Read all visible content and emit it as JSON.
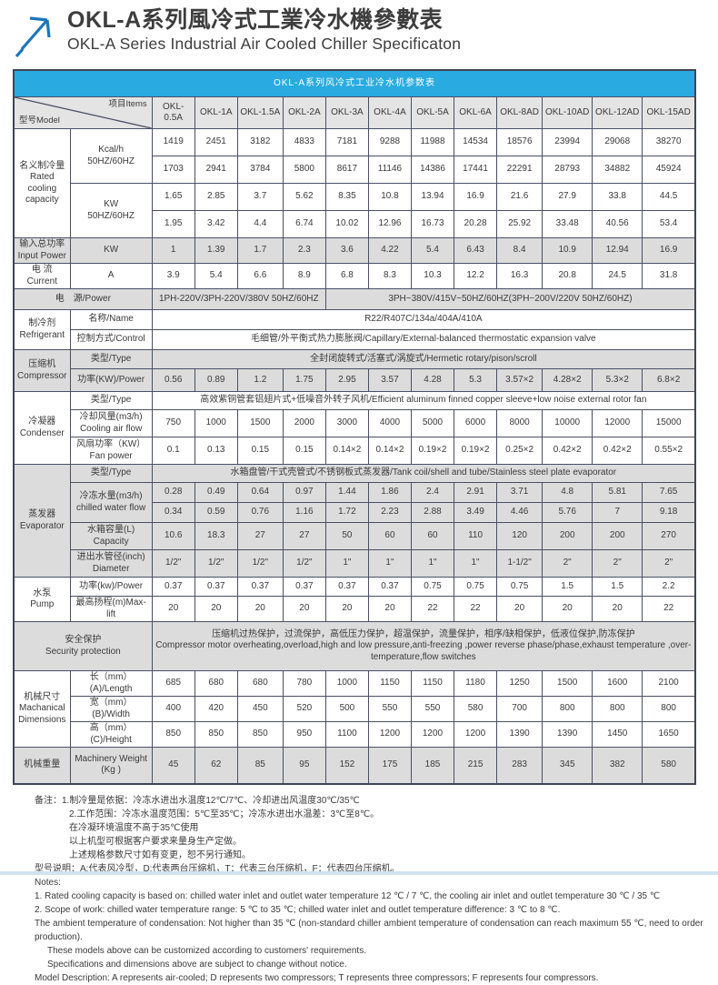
{
  "colors": {
    "accent_blue": "#29ABE2",
    "border": "#4a4f66",
    "row_shade": "#dcdcdc",
    "logo_blue": "#1B75BC"
  },
  "header": {
    "title_zh": "OKL-A系列風冷式工業冷水機參數表",
    "title_en": "OKL-A Series Industrial Air Cooled Chiller Specificaton",
    "logo_icon": "arrow-up-right-icon"
  },
  "table": {
    "title": "OKL-A系列风冷式工业冷水机参数表",
    "corner": {
      "model": "型号Model",
      "items": "项目Items"
    },
    "models": [
      "OKL-0.5A",
      "OKL-1A",
      "OKL-1.5A",
      "OKL-2A",
      "OKL-3A",
      "OKL-4A",
      "OKL-5A",
      "OKL-6A",
      "OKL-8AD",
      "OKL-10AD",
      "OKL-12AD",
      "OKL-15AD"
    ],
    "rows": [
      {
        "shaded": false,
        "group": {
          "text": "名义制冷量\nRated\ncooling\ncapacity",
          "rowspan": 4
        },
        "item": {
          "text": "Kcal/h\n50HZ/60HZ",
          "rowspan": 2
        },
        "values": [
          "1419",
          "2451",
          "3182",
          "4833",
          "7181",
          "9288",
          "11988",
          "14534",
          "18576",
          "23994",
          "29068",
          "38270"
        ]
      },
      {
        "shaded": false,
        "values": [
          "1703",
          "2941",
          "3784",
          "5800",
          "8617",
          "11146",
          "14386",
          "17441",
          "22291",
          "28793",
          "34882",
          "45924"
        ]
      },
      {
        "shaded": false,
        "item": {
          "text": "KW\n50HZ/60HZ",
          "rowspan": 2
        },
        "values": [
          "1.65",
          "2.85",
          "3.7",
          "5.62",
          "8.35",
          "10.8",
          "13.94",
          "16.9",
          "21.6",
          "27.9",
          "33.8",
          "44.5"
        ]
      },
      {
        "shaded": false,
        "values": [
          "1.95",
          "3.42",
          "4.4",
          "6.74",
          "10.02",
          "12.96",
          "16.73",
          "20.28",
          "25.92",
          "33.48",
          "40.56",
          "53.4"
        ]
      },
      {
        "shaded": true,
        "group": {
          "text": "输入总功率\nInput Power",
          "rowspan": 1
        },
        "item": {
          "text": "KW",
          "rowspan": 1
        },
        "values": [
          "1",
          "1.39",
          "1.7",
          "2.3",
          "3.6",
          "4.22",
          "5.4",
          "6.43",
          "8.4",
          "10.9",
          "12.94",
          "16.9"
        ]
      },
      {
        "shaded": false,
        "group": {
          "text": "电 流\nCurrent",
          "rowspan": 1
        },
        "item": {
          "text": "A",
          "rowspan": 1
        },
        "values": [
          "3.9",
          "5.4",
          "6.6",
          "8.9",
          "6.8",
          "8.3",
          "10.3",
          "12.2",
          "16.3",
          "20.8",
          "24.5",
          "31.8"
        ]
      },
      {
        "shaded": true,
        "full": {
          "text": "电　源/Power"
        },
        "spans": [
          {
            "text": "1PH-220V/3PH-220V/380V 50HZ/60HZ",
            "colspan": 4,
            "small": true
          },
          {
            "text": "3PH~380V/415V~50HZ/60HZ(3PH~200V/220V  50HZ/60HZ)",
            "colspan": 8,
            "small": true
          }
        ]
      },
      {
        "shaded": false,
        "group": {
          "text": "制冷剂\nRefrigerant",
          "rowspan": 2
        },
        "item": {
          "text": "名称/Name",
          "rowspan": 1
        },
        "spans": [
          {
            "text": "R22/R407C/134a/404A/410A",
            "colspan": 12
          }
        ]
      },
      {
        "shaded": false,
        "item": {
          "text": "控制方式/Control",
          "rowspan": 1
        },
        "spans": [
          {
            "text": "毛细管/外平衡式热力膨胀阀/Capillary/External-balanced thermostatic expansion valve",
            "colspan": 12
          }
        ]
      },
      {
        "shaded": true,
        "group": {
          "text": "压缩机\nCompressor",
          "rowspan": 2
        },
        "item": {
          "text": "类型/Type",
          "rowspan": 1
        },
        "spans": [
          {
            "text": "全封闭旋转式/活塞式/涡旋式/Hermetic rotary/pison/scroll",
            "colspan": 12
          }
        ]
      },
      {
        "shaded": true,
        "item": {
          "text": "功率(KW)/Power",
          "rowspan": 1
        },
        "values": [
          "0.56",
          "0.89",
          "1.2",
          "1.75",
          "2.95",
          "3.57",
          "4.28",
          "5.3",
          "3.57×2",
          "4.28×2",
          "5.3×2",
          "6.8×2"
        ]
      },
      {
        "shaded": false,
        "group": {
          "text": "冷凝器\nCondenser",
          "rowspan": 3
        },
        "item": {
          "text": "类型/Type",
          "rowspan": 1
        },
        "spans": [
          {
            "text": "高效紫铜管套铝翅片式+低噪音外转子风机/Efficient aluminum finned copper sleeve+low noise external rotor fan",
            "colspan": 12,
            "small": true
          }
        ]
      },
      {
        "shaded": false,
        "item": {
          "text": "冷却风量(m3/h)\nCooling air flow",
          "rowspan": 1
        },
        "values": [
          "750",
          "1000",
          "1500",
          "2000",
          "3000",
          "4000",
          "5000",
          "6000",
          "8000",
          "10000",
          "12000",
          "15000"
        ]
      },
      {
        "shaded": false,
        "item": {
          "text": "风扇功率（KW）\nFan power",
          "rowspan": 1
        },
        "values": [
          "0.1",
          "0.13",
          "0.15",
          "0.15",
          "0.14×2",
          "0.14×2",
          "0.19×2",
          "0.19×2",
          "0.25×2",
          "0.42×2",
          "0.42×2",
          "0.55×2"
        ]
      },
      {
        "shaded": true,
        "group": {
          "text": "蒸发器\nEvaporator",
          "rowspan": 5
        },
        "item": {
          "text": "类型/Type",
          "rowspan": 1
        },
        "spans": [
          {
            "text": "水箱盘管/干式壳管式/不锈钢板式蒸发器/Tank coil/shell and tube/Stainless steel plate evaporator",
            "colspan": 12,
            "small": true
          }
        ]
      },
      {
        "shaded": true,
        "item": {
          "text": "冷冻水量(m3/h)\nchilled water flow",
          "rowspan": 2
        },
        "values": [
          "0.28",
          "0.49",
          "0.64",
          "0.97",
          "1.44",
          "1.86",
          "2.4",
          "2.91",
          "3.71",
          "4.8",
          "5.81",
          "7.65"
        ]
      },
      {
        "shaded": true,
        "values": [
          "0.34",
          "0.59",
          "0.76",
          "1.16",
          "1.72",
          "2.23",
          "2.88",
          "3.49",
          "4.46",
          "5.76",
          "7",
          "9.18"
        ]
      },
      {
        "shaded": true,
        "item": {
          "text": "水箱容量(L)\nCapacity",
          "rowspan": 1
        },
        "values": [
          "10.6",
          "18.3",
          "27",
          "27",
          "50",
          "60",
          "60",
          "110",
          "120",
          "200",
          "200",
          "270"
        ]
      },
      {
        "shaded": true,
        "item": {
          "text": "进出水管径(inch)\nDiameter",
          "rowspan": 1
        },
        "values": [
          "1/2\"",
          "1/2\"",
          "1/2\"",
          "1/2\"",
          "1\"",
          "1\"",
          "1\"",
          "1\"",
          "1-1/2\"",
          "2\"",
          "2\"",
          "2\""
        ]
      },
      {
        "shaded": false,
        "group": {
          "text": "水泵\nPump",
          "rowspan": 2
        },
        "item": {
          "text": "功率(kw)/Power",
          "rowspan": 1
        },
        "values": [
          "0.37",
          "0.37",
          "0.37",
          "0.37",
          "0.37",
          "0.37",
          "0.75",
          "0.75",
          "0.75",
          "1.5",
          "1.5",
          "2.2"
        ]
      },
      {
        "shaded": false,
        "item": {
          "text": "最高扬程(m)Max-lift",
          "rowspan": 1
        },
        "values": [
          "20",
          "20",
          "20",
          "20",
          "20",
          "20",
          "22",
          "22",
          "20",
          "20",
          "20",
          "22"
        ]
      },
      {
        "shaded": true,
        "full": {
          "text": "安全保护\nSecurity protection"
        },
        "spans": [
          {
            "text": "压缩机过热保护，过流保护，高低压力保护，超温保护，流量保护，相序/缺相保护，低液位保护,防冻保护\nCompressor motor overheating,overload,high and low pressure,anti-freezing ,power reverse phase/phase,exhaust temperature ,over-temperature,flow switches",
            "colspan": 12,
            "align": "left"
          }
        ]
      },
      {
        "shaded": false,
        "group": {
          "text": "机械尺寸\nMachanical\nDimensions",
          "rowspan": 3
        },
        "item": {
          "text": "长（mm）(A)/Length",
          "rowspan": 1
        },
        "values": [
          "685",
          "680",
          "680",
          "780",
          "1000",
          "1150",
          "1150",
          "1180",
          "1250",
          "1500",
          "1600",
          "2100"
        ]
      },
      {
        "shaded": false,
        "item": {
          "text": "宽（mm）(B)/Width",
          "rowspan": 1
        },
        "values": [
          "400",
          "420",
          "450",
          "520",
          "500",
          "550",
          "550",
          "580",
          "700",
          "800",
          "800",
          "800"
        ]
      },
      {
        "shaded": false,
        "item": {
          "text": "高（mm）(C)/Height",
          "rowspan": 1
        },
        "values": [
          "850",
          "850",
          "850",
          "950",
          "1100",
          "1200",
          "1200",
          "1200",
          "1390",
          "1390",
          "1450",
          "1650"
        ]
      },
      {
        "shaded": true,
        "group": {
          "text": "机械重量",
          "rowspan": 1
        },
        "item": {
          "text": "Machinery Weight\n(Kg )",
          "rowspan": 1
        },
        "values": [
          "45",
          "62",
          "85",
          "95",
          "152",
          "175",
          "185",
          "215",
          "283",
          "345",
          "382",
          "580"
        ]
      }
    ]
  },
  "notes": {
    "lines": [
      {
        "text": "备注：1.制冷量是依据：冷冻水进出水温度12℃/7℃、冷却进出风温度30℃/35℃",
        "indent": 0
      },
      {
        "text": "2.工作范围：冷冻水温度范围：5℃至35℃；冷冻水进出水温差：3℃至8℃。",
        "indent": 2
      },
      {
        "text": "在冷凝环境温度不高于35℃使用",
        "indent": 2
      },
      {
        "text": "以上机型可根据客户要求来量身生产定做。",
        "indent": 2
      },
      {
        "text": "上述规格参数尺寸如有变更，恕不另行通知。",
        "indent": 2
      },
      {
        "text": "型号说明：A:代表风冷型，D:代表两台压缩机，T：代表三台压缩机，F：代表四台压缩机。",
        "indent": 0
      },
      {
        "text": "Notes:",
        "indent": 0
      },
      {
        "text": "1. Rated cooling capacity is based on: chilled water inlet and outlet water temperature 12 ℃ / 7 ℃, the cooling air inlet and outlet temperature 30 ℃ / 35 ℃",
        "indent": 0
      },
      {
        "text": "2. Scope of work: chilled water temperature range: 5 ℃ to 35 ℃; chilled water inlet and outlet temperature difference: 3 ℃ to 8 ℃.",
        "indent": 0
      },
      {
        "text": "The ambient temperature of condensation: Not higher than 35 ℃ (non-standard chiller ambient temperature of condensation can reach maximum 55 ℃, need to order production).",
        "indent": 0
      },
      {
        "text": "These models above can be customized according to customers'  requirements.",
        "indent": 1
      },
      {
        "text": "Specifications and dimensions above are subject to change without notice.",
        "indent": 1
      },
      {
        "text": "Model Description: A represents air-cooled; D represents two compressors; T represents three compressors; F represents four compressors.",
        "indent": 0
      }
    ]
  }
}
